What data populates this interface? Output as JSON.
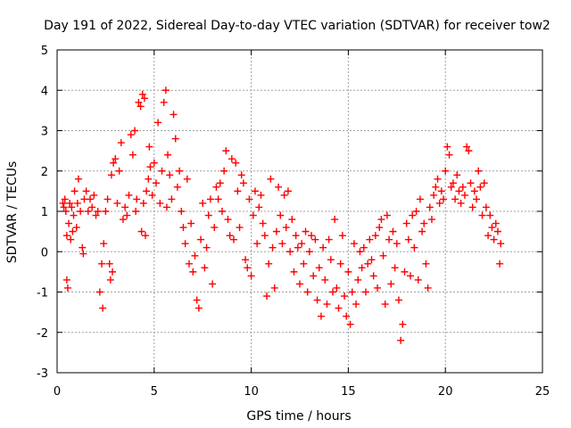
{
  "chart_data": {
    "type": "scatter",
    "title": "Day 191 of 2022, Sidereal Day-to-day VTEC variation (SDTVAR) for receiver tow2",
    "xlabel": "GPS time / hours",
    "ylabel": "SDTVAR / TECUs",
    "xlim": [
      0,
      25
    ],
    "ylim": [
      -3,
      5
    ],
    "xticks": [
      0,
      5,
      10,
      15,
      20,
      25
    ],
    "yticks": [
      -3,
      -2,
      -1,
      0,
      1,
      2,
      3,
      4,
      5
    ],
    "grid": true,
    "marker": "+",
    "color": "#ff0000",
    "series": [
      {
        "name": "SDTVAR",
        "points": [
          [
            0.3,
            1.2
          ],
          [
            0.35,
            1.1
          ],
          [
            0.4,
            1.3
          ],
          [
            0.45,
            1.0
          ],
          [
            0.5,
            0.4
          ],
          [
            0.5,
            -0.7
          ],
          [
            0.55,
            -0.9
          ],
          [
            0.6,
            0.7
          ],
          [
            0.65,
            1.2
          ],
          [
            0.7,
            0.3
          ],
          [
            0.75,
            1.1
          ],
          [
            0.8,
            0.5
          ],
          [
            0.85,
            0.9
          ],
          [
            0.9,
            1.5
          ],
          [
            1.0,
            0.6
          ],
          [
            1.05,
            1.2
          ],
          [
            1.1,
            1.8
          ],
          [
            1.2,
            1.0
          ],
          [
            1.3,
            0.1
          ],
          [
            1.35,
            -0.05
          ],
          [
            1.4,
            1.3
          ],
          [
            1.5,
            1.5
          ],
          [
            1.6,
            1.0
          ],
          [
            1.7,
            1.3
          ],
          [
            1.8,
            1.1
          ],
          [
            1.9,
            1.4
          ],
          [
            2.0,
            0.9
          ],
          [
            2.1,
            1.0
          ],
          [
            2.2,
            -1.0
          ],
          [
            2.3,
            -0.3
          ],
          [
            2.35,
            -1.4
          ],
          [
            2.4,
            0.2
          ],
          [
            2.5,
            1.0
          ],
          [
            2.6,
            1.3
          ],
          [
            2.7,
            -0.3
          ],
          [
            2.75,
            -0.7
          ],
          [
            2.8,
            1.9
          ],
          [
            2.85,
            -0.5
          ],
          [
            2.9,
            2.2
          ],
          [
            3.0,
            2.3
          ],
          [
            3.1,
            1.2
          ],
          [
            3.2,
            2.0
          ],
          [
            3.3,
            2.7
          ],
          [
            3.4,
            0.8
          ],
          [
            3.5,
            1.1
          ],
          [
            3.6,
            0.9
          ],
          [
            3.7,
            1.4
          ],
          [
            3.8,
            2.9
          ],
          [
            3.9,
            2.4
          ],
          [
            4.0,
            3.0
          ],
          [
            4.05,
            1.0
          ],
          [
            4.1,
            1.3
          ],
          [
            4.2,
            3.7
          ],
          [
            4.3,
            3.6
          ],
          [
            4.35,
            0.5
          ],
          [
            4.4,
            3.9
          ],
          [
            4.45,
            1.2
          ],
          [
            4.5,
            3.8
          ],
          [
            4.55,
            0.4
          ],
          [
            4.6,
            1.5
          ],
          [
            4.7,
            1.8
          ],
          [
            4.75,
            2.6
          ],
          [
            4.8,
            2.1
          ],
          [
            4.9,
            1.4
          ],
          [
            5.0,
            2.2
          ],
          [
            5.1,
            1.7
          ],
          [
            5.2,
            3.2
          ],
          [
            5.3,
            1.2
          ],
          [
            5.4,
            2.0
          ],
          [
            5.5,
            3.7
          ],
          [
            5.6,
            4.0
          ],
          [
            5.65,
            1.1
          ],
          [
            5.7,
            2.4
          ],
          [
            5.8,
            1.9
          ],
          [
            5.9,
            1.3
          ],
          [
            6.0,
            3.4
          ],
          [
            6.1,
            2.8
          ],
          [
            6.2,
            1.6
          ],
          [
            6.3,
            2.0
          ],
          [
            6.4,
            1.0
          ],
          [
            6.5,
            0.6
          ],
          [
            6.6,
            0.2
          ],
          [
            6.7,
            1.8
          ],
          [
            6.8,
            -0.3
          ],
          [
            6.9,
            0.7
          ],
          [
            7.0,
            -0.5
          ],
          [
            7.1,
            -0.1
          ],
          [
            7.2,
            -1.2
          ],
          [
            7.3,
            -1.4
          ],
          [
            7.4,
            0.3
          ],
          [
            7.5,
            1.2
          ],
          [
            7.6,
            -0.4
          ],
          [
            7.7,
            0.1
          ],
          [
            7.8,
            0.9
          ],
          [
            7.9,
            1.3
          ],
          [
            8.0,
            -0.8
          ],
          [
            8.1,
            0.6
          ],
          [
            8.2,
            1.6
          ],
          [
            8.3,
            1.3
          ],
          [
            8.4,
            1.7
          ],
          [
            8.5,
            1.0
          ],
          [
            8.6,
            2.0
          ],
          [
            8.7,
            2.5
          ],
          [
            8.8,
            0.8
          ],
          [
            8.9,
            0.4
          ],
          [
            9.0,
            2.3
          ],
          [
            9.1,
            0.3
          ],
          [
            9.2,
            2.2
          ],
          [
            9.3,
            1.5
          ],
          [
            9.4,
            0.6
          ],
          [
            9.5,
            1.9
          ],
          [
            9.6,
            1.7
          ],
          [
            9.7,
            -0.2
          ],
          [
            9.8,
            -0.4
          ],
          [
            9.9,
            1.3
          ],
          [
            10.0,
            -0.6
          ],
          [
            10.1,
            0.9
          ],
          [
            10.2,
            1.5
          ],
          [
            10.3,
            0.2
          ],
          [
            10.4,
            1.1
          ],
          [
            10.5,
            1.4
          ],
          [
            10.6,
            0.7
          ],
          [
            10.7,
            0.4
          ],
          [
            10.8,
            -1.1
          ],
          [
            10.9,
            -0.3
          ],
          [
            11.0,
            1.8
          ],
          [
            11.1,
            0.1
          ],
          [
            11.2,
            -0.9
          ],
          [
            11.3,
            0.5
          ],
          [
            11.4,
            1.6
          ],
          [
            11.5,
            0.9
          ],
          [
            11.6,
            0.2
          ],
          [
            11.7,
            1.4
          ],
          [
            11.8,
            0.6
          ],
          [
            11.9,
            1.5
          ],
          [
            12.0,
            0.0
          ],
          [
            12.1,
            0.8
          ],
          [
            12.2,
            -0.5
          ],
          [
            12.3,
            0.4
          ],
          [
            12.4,
            0.1
          ],
          [
            12.5,
            -0.8
          ],
          [
            12.6,
            0.2
          ],
          [
            12.7,
            -0.3
          ],
          [
            12.8,
            0.5
          ],
          [
            12.9,
            -1.0
          ],
          [
            13.0,
            0.0
          ],
          [
            13.1,
            0.4
          ],
          [
            13.2,
            -0.6
          ],
          [
            13.3,
            0.3
          ],
          [
            13.4,
            -1.2
          ],
          [
            13.5,
            -0.4
          ],
          [
            13.6,
            -1.6
          ],
          [
            13.7,
            0.1
          ],
          [
            13.8,
            -0.7
          ],
          [
            13.9,
            -1.3
          ],
          [
            14.0,
            0.3
          ],
          [
            14.1,
            -0.2
          ],
          [
            14.2,
            -1.0
          ],
          [
            14.3,
            0.8
          ],
          [
            14.4,
            -0.9
          ],
          [
            14.5,
            -1.4
          ],
          [
            14.6,
            -0.3
          ],
          [
            14.7,
            0.4
          ],
          [
            14.8,
            -1.1
          ],
          [
            14.9,
            -1.6
          ],
          [
            15.0,
            -0.5
          ],
          [
            15.1,
            -1.8
          ],
          [
            15.2,
            -1.0
          ],
          [
            15.3,
            0.2
          ],
          [
            15.4,
            -1.3
          ],
          [
            15.5,
            -0.7
          ],
          [
            15.6,
            0.0
          ],
          [
            15.7,
            -0.4
          ],
          [
            15.8,
            0.1
          ],
          [
            15.9,
            -1.0
          ],
          [
            16.0,
            -0.3
          ],
          [
            16.1,
            0.3
          ],
          [
            16.2,
            -0.2
          ],
          [
            16.3,
            -0.6
          ],
          [
            16.4,
            0.4
          ],
          [
            16.5,
            -0.9
          ],
          [
            16.6,
            0.6
          ],
          [
            16.7,
            0.8
          ],
          [
            16.8,
            -0.1
          ],
          [
            16.9,
            -1.3
          ],
          [
            17.0,
            0.9
          ],
          [
            17.1,
            0.3
          ],
          [
            17.2,
            -0.8
          ],
          [
            17.3,
            0.5
          ],
          [
            17.4,
            -0.4
          ],
          [
            17.5,
            0.2
          ],
          [
            17.6,
            -1.2
          ],
          [
            17.7,
            -2.2
          ],
          [
            17.8,
            -1.8
          ],
          [
            17.9,
            -0.5
          ],
          [
            18.0,
            0.7
          ],
          [
            18.1,
            0.3
          ],
          [
            18.2,
            -0.6
          ],
          [
            18.3,
            0.9
          ],
          [
            18.4,
            0.1
          ],
          [
            18.5,
            1.0
          ],
          [
            18.6,
            -0.7
          ],
          [
            18.7,
            1.3
          ],
          [
            18.8,
            0.5
          ],
          [
            18.9,
            0.7
          ],
          [
            19.0,
            -0.3
          ],
          [
            19.1,
            -0.9
          ],
          [
            19.2,
            1.1
          ],
          [
            19.3,
            0.8
          ],
          [
            19.4,
            1.4
          ],
          [
            19.5,
            1.6
          ],
          [
            19.6,
            1.8
          ],
          [
            19.7,
            1.2
          ],
          [
            19.8,
            1.5
          ],
          [
            19.9,
            1.3
          ],
          [
            20.0,
            2.0
          ],
          [
            20.1,
            2.6
          ],
          [
            20.2,
            2.4
          ],
          [
            20.3,
            1.6
          ],
          [
            20.4,
            1.7
          ],
          [
            20.5,
            1.3
          ],
          [
            20.6,
            1.9
          ],
          [
            20.7,
            1.5
          ],
          [
            20.8,
            1.2
          ],
          [
            20.9,
            1.6
          ],
          [
            21.0,
            1.4
          ],
          [
            21.1,
            2.6
          ],
          [
            21.2,
            2.5
          ],
          [
            21.3,
            1.7
          ],
          [
            21.4,
            1.1
          ],
          [
            21.5,
            1.5
          ],
          [
            21.6,
            1.3
          ],
          [
            21.7,
            2.0
          ],
          [
            21.8,
            1.6
          ],
          [
            21.9,
            0.9
          ],
          [
            22.0,
            1.7
          ],
          [
            22.1,
            1.1
          ],
          [
            22.2,
            0.4
          ],
          [
            22.3,
            0.9
          ],
          [
            22.4,
            0.6
          ],
          [
            22.5,
            0.3
          ],
          [
            22.6,
            0.7
          ],
          [
            22.7,
            0.5
          ],
          [
            22.8,
            -0.3
          ],
          [
            22.85,
            0.2
          ]
        ]
      }
    ]
  }
}
